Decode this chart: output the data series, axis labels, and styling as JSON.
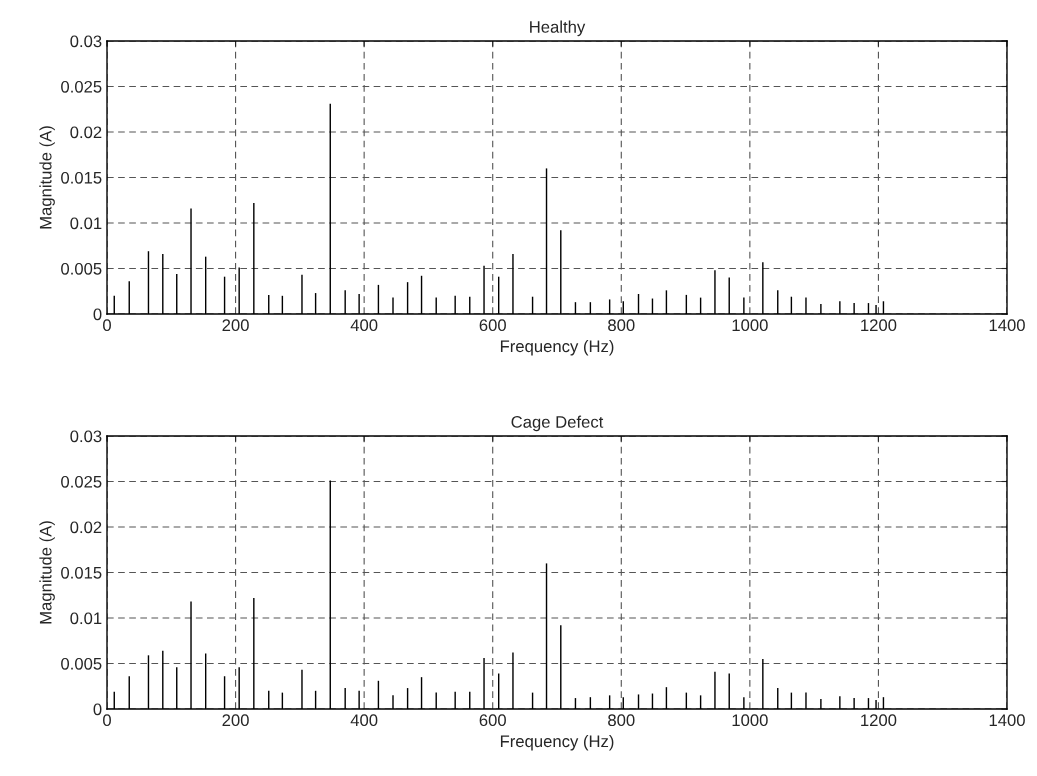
{
  "chart_data": [
    {
      "type": "bar",
      "title": "Healthy",
      "xlabel": "Frequency (Hz)",
      "ylabel": "Magnitude (A)",
      "color": "#000000",
      "x": [
        11.3,
        34.6,
        64.5,
        86.8,
        108.5,
        130.7,
        153.5,
        182.9,
        205.6,
        228.4,
        251.6,
        272.8,
        303.3,
        324.5,
        347.3,
        370.5,
        392.2,
        422.2,
        444.9,
        467.6,
        489.3,
        512.1,
        541.6,
        564.3,
        586.5,
        609.3,
        631.5,
        662,
        683.7,
        705.9,
        728.7,
        751.9,
        781.9,
        803.1,
        826.8,
        848.5,
        870.2,
        901.2,
        923.4,
        945.7,
        967.9,
        990.7,
        1020.2,
        1043.4,
        1064.6,
        1087.3,
        1110.5,
        1140,
        1162.2,
        1184.5,
        1196.3,
        1207.8
      ],
      "values": [
        0.002,
        0.0036,
        0.0069,
        0.0066,
        0.0044,
        0.0116,
        0.0063,
        0.0041,
        0.0051,
        0.0122,
        0.0021,
        0.002,
        0.0043,
        0.0023,
        0.0231,
        0.0026,
        0.0022,
        0.0032,
        0.0018,
        0.0035,
        0.0042,
        0.0018,
        0.002,
        0.0019,
        0.0053,
        0.0041,
        0.0066,
        0.0019,
        0.016,
        0.0092,
        0.0013,
        0.0013,
        0.0016,
        0.0014,
        0.0022,
        0.0017,
        0.0026,
        0.0021,
        0.0018,
        0.0048,
        0.004,
        0.0018,
        0.0057,
        0.0026,
        0.0019,
        0.0018,
        0.0011,
        0.0014,
        0.0012,
        0.0012,
        0.001,
        0.0014
      ],
      "xlim": [
        0,
        1400
      ],
      "xticks": [
        0,
        200,
        400,
        600,
        800,
        1000,
        1200,
        1400
      ],
      "ylim": [
        0,
        0.03
      ],
      "yticks": [
        0,
        0.005,
        0.01,
        0.015,
        0.02,
        0.025,
        0.03
      ],
      "grid": true
    },
    {
      "type": "bar",
      "title": "Cage Defect",
      "xlabel": "Frequency (Hz)",
      "ylabel": "Magnitude (A)",
      "color": "#000000",
      "x": [
        11.3,
        34.6,
        64.5,
        86.8,
        108.5,
        130.7,
        153.5,
        182.9,
        205.6,
        228.4,
        251.6,
        272.8,
        303.3,
        324.5,
        347.3,
        370.5,
        392.2,
        422.2,
        444.9,
        467.6,
        489.3,
        512.1,
        541.6,
        564.3,
        586.5,
        609.3,
        631.5,
        662,
        683.7,
        705.9,
        728.7,
        751.9,
        781.9,
        803.1,
        826.8,
        848.5,
        870.2,
        901.2,
        923.4,
        945.7,
        967.9,
        990.7,
        1020.2,
        1043.4,
        1064.6,
        1087.3,
        1110.5,
        1140,
        1162.2,
        1184.5,
        1196.3,
        1207.8
      ],
      "values": [
        0.0019,
        0.0036,
        0.0059,
        0.0064,
        0.0046,
        0.0118,
        0.0061,
        0.0036,
        0.0046,
        0.0122,
        0.002,
        0.0018,
        0.0043,
        0.002,
        0.0251,
        0.0023,
        0.002,
        0.0031,
        0.0015,
        0.0023,
        0.0035,
        0.0018,
        0.0019,
        0.0019,
        0.0056,
        0.0039,
        0.0062,
        0.0018,
        0.016,
        0.0092,
        0.0012,
        0.0013,
        0.0015,
        0.0013,
        0.0016,
        0.0017,
        0.0024,
        0.0018,
        0.0015,
        0.0041,
        0.0039,
        0.0013,
        0.0055,
        0.0023,
        0.0018,
        0.0018,
        0.0011,
        0.0014,
        0.0012,
        0.0012,
        0.001,
        0.0013
      ],
      "xlim": [
        0,
        1400
      ],
      "xticks": [
        0,
        200,
        400,
        600,
        800,
        1000,
        1200,
        1400
      ],
      "ylim": [
        0,
        0.03
      ],
      "yticks": [
        0,
        0.005,
        0.01,
        0.015,
        0.02,
        0.025,
        0.03
      ],
      "grid": true
    }
  ]
}
